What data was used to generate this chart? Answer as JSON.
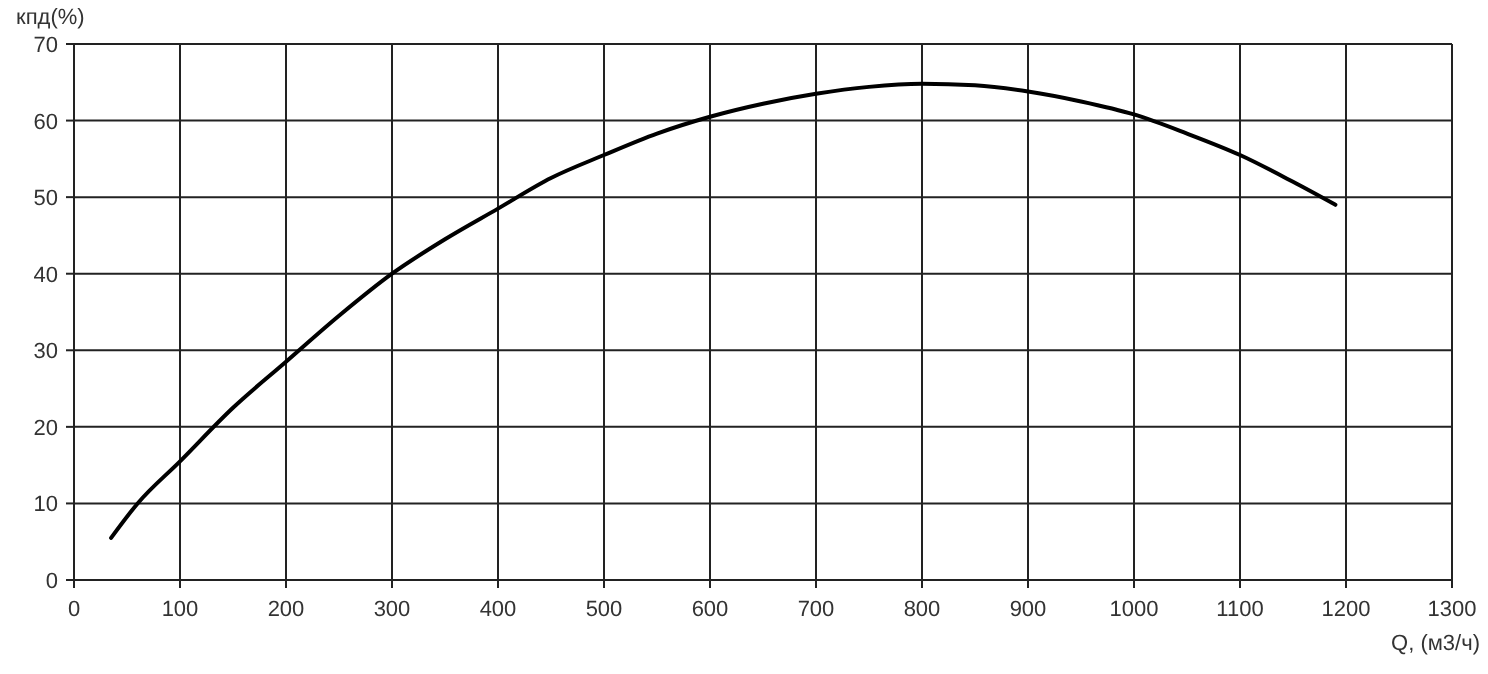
{
  "chart_data": {
    "type": "line",
    "xlabel": "Q, (м3/ч)",
    "ylabel": "кпд(%)",
    "xlim": [
      0,
      1300
    ],
    "xticks": [
      0,
      100,
      200,
      300,
      400,
      500,
      600,
      700,
      800,
      900,
      1000,
      1100,
      1200,
      1300
    ],
    "ylim": [
      0,
      70
    ],
    "yticks": [
      0,
      10,
      20,
      30,
      40,
      50,
      60,
      70
    ],
    "grid": true,
    "series": [
      {
        "color": "#000000",
        "x": [
          35,
          60,
          100,
          150,
          200,
          250,
          300,
          350,
          400,
          450,
          500,
          550,
          600,
          650,
          700,
          750,
          800,
          850,
          900,
          950,
          1000,
          1050,
          1100,
          1150,
          1190
        ],
        "values": [
          5.5,
          10,
          15.5,
          22.5,
          28.5,
          34.5,
          40,
          44.5,
          48.5,
          52.5,
          55.5,
          58.3,
          60.5,
          62.2,
          63.5,
          64.4,
          64.8,
          64.6,
          63.8,
          62.5,
          60.8,
          58.3,
          55.5,
          52,
          49
        ]
      }
    ]
  }
}
